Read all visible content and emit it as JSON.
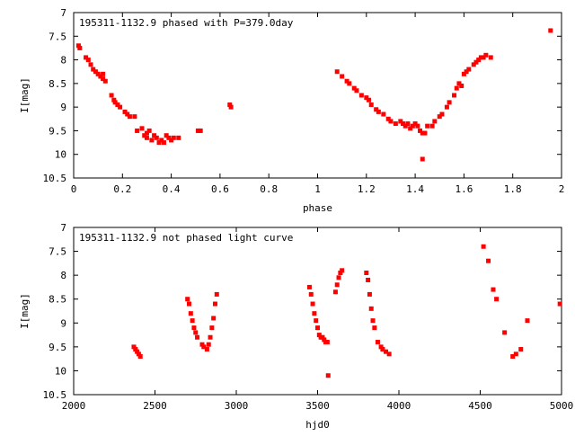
{
  "chart_data": [
    {
      "type": "scatter",
      "title": "195311-1132.9 phased with P=379.0day",
      "xlabel": "phase",
      "ylabel": "I[mag]",
      "xlim": [
        0,
        2
      ],
      "ylim": [
        10.5,
        7
      ],
      "y_inverted": true,
      "grid": false,
      "xticks": [
        "0",
        "0.2",
        "0.4",
        "0.6",
        "0.8",
        "1",
        "1.2",
        "1.4",
        "1.6",
        "1.8",
        "2"
      ],
      "yticks": [
        "7",
        "7.5",
        "8",
        "8.5",
        "9",
        "9.5",
        "10",
        "10.5"
      ],
      "marker_color": "#ff0000",
      "points": [
        [
          0.02,
          7.7
        ],
        [
          0.025,
          7.75
        ],
        [
          0.05,
          7.95
        ],
        [
          0.06,
          8.0
        ],
        [
          0.07,
          8.1
        ],
        [
          0.08,
          8.2
        ],
        [
          0.09,
          8.25
        ],
        [
          0.1,
          8.3
        ],
        [
          0.11,
          8.35
        ],
        [
          0.12,
          8.4
        ],
        [
          0.12,
          8.3
        ],
        [
          0.13,
          8.45
        ],
        [
          0.155,
          8.75
        ],
        [
          0.165,
          8.85
        ],
        [
          0.17,
          8.9
        ],
        [
          0.18,
          8.95
        ],
        [
          0.19,
          9.0
        ],
        [
          0.21,
          9.1
        ],
        [
          0.22,
          9.15
        ],
        [
          0.23,
          9.2
        ],
        [
          0.25,
          9.2
        ],
        [
          0.26,
          9.5
        ],
        [
          0.28,
          9.45
        ],
        [
          0.29,
          9.6
        ],
        [
          0.3,
          9.55
        ],
        [
          0.3,
          9.65
        ],
        [
          0.31,
          9.5
        ],
        [
          0.32,
          9.7
        ],
        [
          0.33,
          9.6
        ],
        [
          0.34,
          9.65
        ],
        [
          0.35,
          9.75
        ],
        [
          0.36,
          9.7
        ],
        [
          0.37,
          9.75
        ],
        [
          0.38,
          9.6
        ],
        [
          0.39,
          9.65
        ],
        [
          0.4,
          9.7
        ],
        [
          0.41,
          9.65
        ],
        [
          0.43,
          9.65
        ],
        [
          0.51,
          9.5
        ],
        [
          0.52,
          9.5
        ],
        [
          0.64,
          8.95
        ],
        [
          0.645,
          9.0
        ],
        [
          1.08,
          8.25
        ],
        [
          1.1,
          8.35
        ],
        [
          1.12,
          8.45
        ],
        [
          1.13,
          8.5
        ],
        [
          1.15,
          8.6
        ],
        [
          1.16,
          8.65
        ],
        [
          1.18,
          8.75
        ],
        [
          1.2,
          8.8
        ],
        [
          1.21,
          8.85
        ],
        [
          1.22,
          8.95
        ],
        [
          1.24,
          9.05
        ],
        [
          1.25,
          9.1
        ],
        [
          1.27,
          9.15
        ],
        [
          1.29,
          9.25
        ],
        [
          1.3,
          9.3
        ],
        [
          1.32,
          9.35
        ],
        [
          1.34,
          9.3
        ],
        [
          1.35,
          9.35
        ],
        [
          1.36,
          9.4
        ],
        [
          1.37,
          9.35
        ],
        [
          1.38,
          9.45
        ],
        [
          1.39,
          9.4
        ],
        [
          1.4,
          9.35
        ],
        [
          1.41,
          9.4
        ],
        [
          1.42,
          9.5
        ],
        [
          1.43,
          9.55
        ],
        [
          1.44,
          9.55
        ],
        [
          1.45,
          9.4
        ],
        [
          1.47,
          9.4
        ],
        [
          1.48,
          9.3
        ],
        [
          1.5,
          9.2
        ],
        [
          1.51,
          9.15
        ],
        [
          1.53,
          9.0
        ],
        [
          1.54,
          8.9
        ],
        [
          1.56,
          8.75
        ],
        [
          1.57,
          8.6
        ],
        [
          1.58,
          8.5
        ],
        [
          1.59,
          8.55
        ],
        [
          1.6,
          8.3
        ],
        [
          1.61,
          8.25
        ],
        [
          1.62,
          8.2
        ],
        [
          1.64,
          8.1
        ],
        [
          1.65,
          8.05
        ],
        [
          1.66,
          8.0
        ],
        [
          1.67,
          7.95
        ],
        [
          1.68,
          7.95
        ],
        [
          1.69,
          7.9
        ],
        [
          1.71,
          7.95
        ],
        [
          1.43,
          10.1
        ],
        [
          1.955,
          7.38
        ]
      ]
    },
    {
      "type": "scatter",
      "title": "195311-1132.9 not phased light curve",
      "xlabel": "hjd0",
      "ylabel": "I[mag]",
      "xlim": [
        2000,
        5000
      ],
      "ylim": [
        10.5,
        7
      ],
      "y_inverted": true,
      "grid": false,
      "xticks": [
        "2000",
        "2500",
        "3000",
        "3500",
        "4000",
        "4500",
        "5000"
      ],
      "yticks": [
        "7",
        "7.5",
        "8",
        "8.5",
        "9",
        "9.5",
        "10",
        "10.5"
      ],
      "marker_color": "#ff0000",
      "points": [
        [
          2370,
          9.5
        ],
        [
          2380,
          9.55
        ],
        [
          2390,
          9.6
        ],
        [
          2400,
          9.65
        ],
        [
          2410,
          9.7
        ],
        [
          2700,
          8.5
        ],
        [
          2710,
          8.6
        ],
        [
          2720,
          8.8
        ],
        [
          2730,
          8.95
        ],
        [
          2740,
          9.1
        ],
        [
          2750,
          9.2
        ],
        [
          2760,
          9.3
        ],
        [
          2790,
          9.45
        ],
        [
          2800,
          9.5
        ],
        [
          2820,
          9.55
        ],
        [
          2830,
          9.45
        ],
        [
          2840,
          9.3
        ],
        [
          2850,
          9.1
        ],
        [
          2860,
          8.9
        ],
        [
          2870,
          8.6
        ],
        [
          2880,
          8.4
        ],
        [
          3450,
          8.25
        ],
        [
          3460,
          8.4
        ],
        [
          3470,
          8.6
        ],
        [
          3480,
          8.8
        ],
        [
          3490,
          8.95
        ],
        [
          3500,
          9.1
        ],
        [
          3510,
          9.25
        ],
        [
          3520,
          9.3
        ],
        [
          3530,
          9.3
        ],
        [
          3540,
          9.35
        ],
        [
          3550,
          9.4
        ],
        [
          3560,
          9.4
        ],
        [
          3565,
          10.1
        ],
        [
          3610,
          8.35
        ],
        [
          3620,
          8.2
        ],
        [
          3630,
          8.05
        ],
        [
          3640,
          7.95
        ],
        [
          3650,
          7.9
        ],
        [
          3800,
          7.95
        ],
        [
          3810,
          8.1
        ],
        [
          3820,
          8.4
        ],
        [
          3830,
          8.7
        ],
        [
          3840,
          8.95
        ],
        [
          3850,
          9.1
        ],
        [
          3870,
          9.4
        ],
        [
          3890,
          9.5
        ],
        [
          3900,
          9.55
        ],
        [
          3920,
          9.6
        ],
        [
          3940,
          9.65
        ],
        [
          4520,
          7.4
        ],
        [
          4550,
          7.7
        ],
        [
          4580,
          8.3
        ],
        [
          4600,
          8.5
        ],
        [
          4650,
          9.2
        ],
        [
          4700,
          9.7
        ],
        [
          4720,
          9.65
        ],
        [
          4750,
          9.55
        ],
        [
          4790,
          8.95
        ],
        [
          4990,
          8.6
        ]
      ]
    }
  ]
}
